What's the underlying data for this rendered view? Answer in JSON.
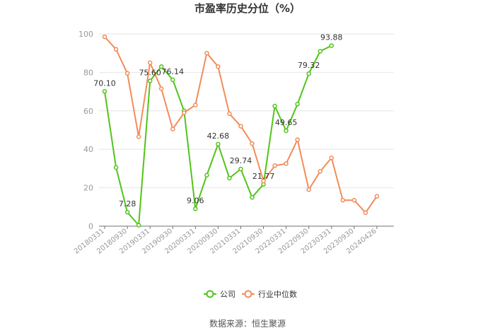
{
  "chart_data": {
    "type": "line",
    "title": "市盈率历史分位（%）",
    "ylim": [
      0,
      100
    ],
    "y_ticks": [
      0,
      20,
      40,
      60,
      80,
      100
    ],
    "grid": "horizontal",
    "legend_position": "bottom",
    "x_tick_labels": [
      "20180331",
      "20180930",
      "20190331",
      "20190930",
      "20200331",
      "20200930",
      "20210331",
      "20210930",
      "20220331",
      "20220930",
      "20230331",
      "20230930",
      "20240426"
    ],
    "series": [
      {
        "name": "公司",
        "color": "#52c41a",
        "values": [
          70.1,
          30.5,
          7.28,
          0.5,
          75.6,
          83.0,
          76.14,
          60.0,
          9.06,
          26.5,
          42.68,
          25.0,
          29.74,
          15.0,
          21.77,
          62.5,
          49.65,
          63.5,
          79.32,
          91.0,
          93.88,
          null,
          null,
          null,
          null,
          null
        ],
        "labels": [
          {
            "index": 0,
            "text": "70.10"
          },
          {
            "index": 2,
            "text": "7.28"
          },
          {
            "index": 4,
            "text": "75.60"
          },
          {
            "index": 6,
            "text": "76.14"
          },
          {
            "index": 8,
            "text": "9.06"
          },
          {
            "index": 10,
            "text": "42.68"
          },
          {
            "index": 12,
            "text": "29.74"
          },
          {
            "index": 14,
            "text": "21.77"
          },
          {
            "index": 16,
            "text": "49.65"
          },
          {
            "index": 18,
            "text": "79.32"
          },
          {
            "index": 20,
            "text": "93.88"
          }
        ]
      },
      {
        "name": "行业中位数",
        "color": "#f28c5a",
        "values": [
          98.5,
          92.0,
          79.5,
          46.5,
          85.0,
          71.5,
          50.5,
          59.0,
          63.0,
          90.0,
          83.0,
          58.5,
          52.0,
          43.0,
          23.5,
          31.5,
          32.5,
          45.0,
          19.0,
          28.5,
          35.5,
          13.5,
          13.5,
          7.0,
          15.5,
          null
        ],
        "labels": []
      }
    ]
  },
  "source": "数据来源：恒生聚源"
}
